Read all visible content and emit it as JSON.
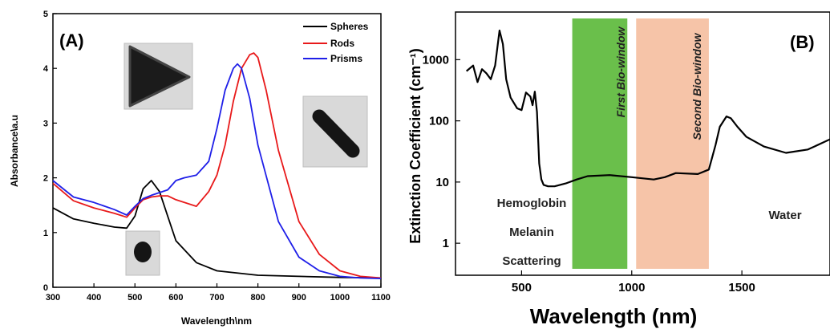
{
  "chart_data": [
    {
      "panel_label": "(A)",
      "type": "line",
      "xlabel": "Wavelength\\nm",
      "ylabel": "Absorbance\\a.u",
      "xlim": [
        300,
        1100
      ],
      "ylim": [
        0,
        5
      ],
      "xticks": [
        300,
        400,
        500,
        600,
        700,
        800,
        900,
        1000,
        1100
      ],
      "yticks": [
        0,
        1,
        2,
        3,
        4,
        5
      ],
      "grid": false,
      "legend_position": "top-right",
      "series": [
        {
          "name": "Spheres",
          "color": "#000000",
          "x": [
            300,
            350,
            400,
            450,
            480,
            500,
            520,
            540,
            560,
            580,
            600,
            650,
            700,
            800,
            900,
            1000,
            1100
          ],
          "y": [
            1.45,
            1.25,
            1.17,
            1.1,
            1.08,
            1.3,
            1.8,
            1.95,
            1.75,
            1.3,
            0.85,
            0.45,
            0.3,
            0.22,
            0.2,
            0.18,
            0.17
          ]
        },
        {
          "name": "Rods",
          "color": "#e8191a",
          "x": [
            300,
            350,
            400,
            450,
            480,
            500,
            520,
            540,
            560,
            580,
            600,
            650,
            680,
            700,
            720,
            740,
            760,
            780,
            790,
            800,
            820,
            850,
            900,
            950,
            1000,
            1050,
            1100
          ],
          "y": [
            1.9,
            1.58,
            1.45,
            1.35,
            1.28,
            1.45,
            1.6,
            1.65,
            1.67,
            1.67,
            1.6,
            1.48,
            1.75,
            2.05,
            2.6,
            3.4,
            4.0,
            4.25,
            4.28,
            4.2,
            3.6,
            2.5,
            1.2,
            0.6,
            0.3,
            0.2,
            0.17
          ]
        },
        {
          "name": "Prisms",
          "color": "#1f1fe8",
          "x": [
            300,
            350,
            400,
            450,
            480,
            500,
            520,
            540,
            560,
            580,
            600,
            620,
            650,
            680,
            700,
            720,
            740,
            750,
            760,
            780,
            800,
            850,
            900,
            950,
            1000,
            1050,
            1100
          ],
          "y": [
            1.95,
            1.65,
            1.55,
            1.42,
            1.32,
            1.48,
            1.62,
            1.68,
            1.73,
            1.78,
            1.95,
            2.0,
            2.05,
            2.3,
            2.9,
            3.6,
            4.0,
            4.08,
            4.0,
            3.45,
            2.6,
            1.2,
            0.55,
            0.3,
            0.2,
            0.17,
            0.16
          ]
        }
      ],
      "inset_images": [
        "triangle-prism-tem",
        "rod-tem",
        "sphere-tem"
      ]
    },
    {
      "panel_label": "(B)",
      "type": "line",
      "scale": "log-y",
      "xlabel": "Wavelength (nm)",
      "ylabel": "Extinction Coefficient (cm⁻¹)",
      "xlim": [
        200,
        1900
      ],
      "ylim": [
        0.3,
        6000
      ],
      "xticks": [
        500,
        1000,
        1500
      ],
      "yticks": [
        1,
        10,
        100,
        1000
      ],
      "grid": false,
      "series": [
        {
          "color": "#000000",
          "x": [
            250,
            280,
            300,
            320,
            340,
            360,
            380,
            400,
            415,
            430,
            450,
            480,
            500,
            520,
            540,
            550,
            560,
            570,
            580,
            590,
            600,
            620,
            650,
            700,
            750,
            800,
            900,
            1000,
            1100,
            1150,
            1200,
            1300,
            1350,
            1380,
            1400,
            1430,
            1450,
            1480,
            1520,
            1600,
            1700,
            1800,
            1900
          ],
          "y": [
            650,
            800,
            430,
            700,
            600,
            480,
            800,
            3000,
            1800,
            480,
            240,
            160,
            150,
            290,
            250,
            180,
            300,
            140,
            20,
            11,
            9,
            8.5,
            8.5,
            9.5,
            11,
            12.5,
            13,
            12,
            11,
            12,
            14,
            13.5,
            16,
            40,
            80,
            118,
            110,
            80,
            55,
            38,
            30,
            34,
            50
          ]
        }
      ],
      "bands": [
        {
          "label": "First Bio-window",
          "x": [
            730,
            980
          ],
          "color": "#6abf4b"
        },
        {
          "label": "Second Bio-window",
          "x": [
            1020,
            1350
          ],
          "color": "#f6c4a8"
        }
      ],
      "annotations": [
        "Hemoglobin",
        "Melanin",
        "Scattering",
        "Water"
      ]
    }
  ]
}
